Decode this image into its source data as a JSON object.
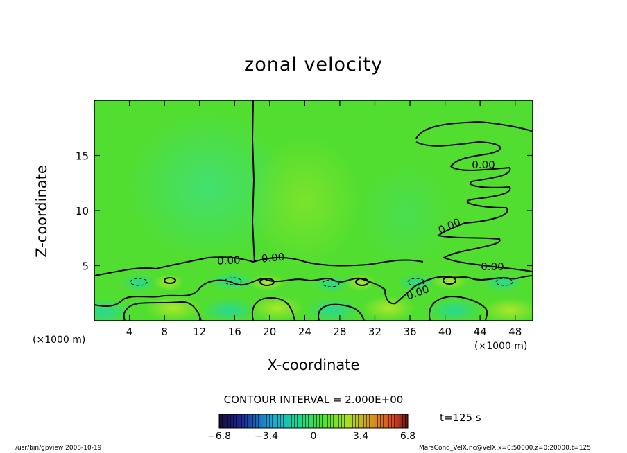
{
  "chart_data": {
    "type": "heatmap",
    "title": "zonal velocity",
    "xlabel": "X-coordinate",
    "ylabel": "Z-coordinate",
    "x_unit_label": "(×1000 m)",
    "y_unit_label": "(×1000 m)",
    "xlim": [
      0,
      50
    ],
    "ylim": [
      0,
      20
    ],
    "x_ticks": [
      4,
      8,
      12,
      16,
      20,
      24,
      28,
      32,
      36,
      40,
      44,
      48
    ],
    "y_ticks": [
      5,
      10,
      15
    ],
    "contour_labels": [
      "0.00",
      "0.00",
      "0.00",
      "0.00",
      "0.00",
      "0.00",
      "0.00"
    ],
    "contour_interval_text": "CONTOUR INTERVAL = 2.000E+00",
    "colorbar": {
      "range": [
        -6.8,
        6.8
      ],
      "tick_labels": [
        "−6.8",
        "−3.4",
        "0",
        "3.4",
        "6.8"
      ],
      "tick_values": [
        -6.8,
        -3.4,
        0,
        3.4,
        6.8
      ]
    },
    "time_label": "t=125 s",
    "colors": {
      "background_field": "#53e02f",
      "positive": "#a8e82a",
      "negative": "#18d898"
    }
  },
  "footer": {
    "left": "/usr/bin/gpview  2008-10-19",
    "right": "MarsCond_VelX.nc@VelX,x=0:50000,z=0:20000,t=125"
  }
}
